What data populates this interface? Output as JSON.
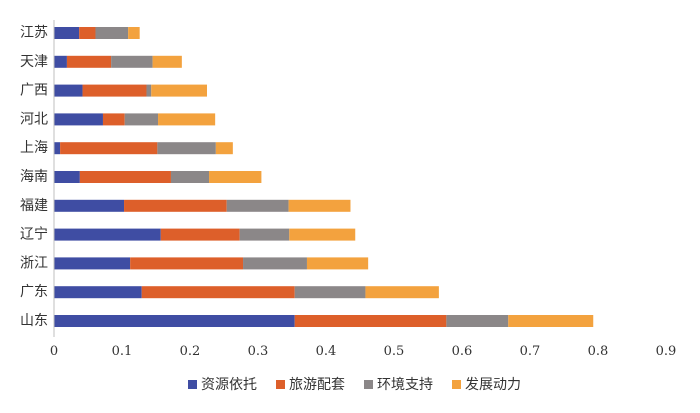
{
  "chart_data": {
    "type": "bar",
    "orientation": "horizontal",
    "stacked": true,
    "categories": [
      "江苏",
      "天津",
      "广西",
      "河北",
      "上海",
      "海南",
      "福建",
      "辽宁",
      "浙江",
      "广东",
      "山东"
    ],
    "series": [
      {
        "name": "资源依托",
        "color": "#3f4da3",
        "values": [
          0.037,
          0.019,
          0.042,
          0.072,
          0.009,
          0.038,
          0.103,
          0.157,
          0.112,
          0.129,
          0.354
        ]
      },
      {
        "name": "旅游配套",
        "color": "#dd5f2a",
        "values": [
          0.024,
          0.065,
          0.094,
          0.032,
          0.143,
          0.134,
          0.151,
          0.116,
          0.166,
          0.225,
          0.223
        ]
      },
      {
        "name": "环境支持",
        "color": "#8b8788",
        "values": [
          0.048,
          0.061,
          0.007,
          0.049,
          0.086,
          0.056,
          0.091,
          0.073,
          0.094,
          0.104,
          0.091
        ]
      },
      {
        "name": "发展动力",
        "color": "#f3a23e",
        "values": [
          0.017,
          0.043,
          0.082,
          0.084,
          0.025,
          0.077,
          0.091,
          0.097,
          0.09,
          0.108,
          0.125
        ]
      }
    ],
    "xlim": [
      0,
      0.9
    ],
    "xticks": [
      "0",
      "0.1",
      "0.2",
      "0.3",
      "0.4",
      "0.5",
      "0.6",
      "0.7",
      "0.8",
      "0.9"
    ],
    "legend_position": "bottom",
    "grid": false
  }
}
